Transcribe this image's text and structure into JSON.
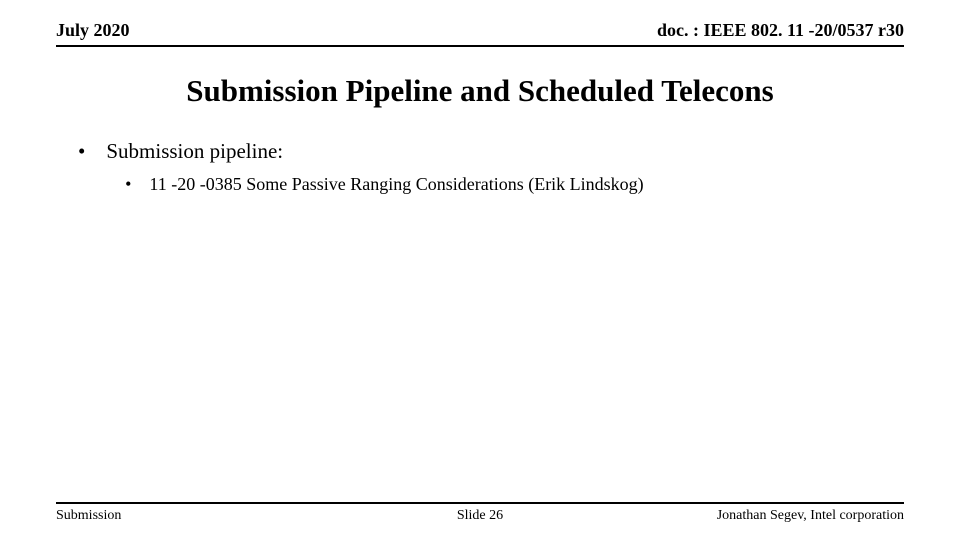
{
  "header": {
    "date": "July 2020",
    "doc": "doc. : IEEE 802. 11 -20/0537 r30"
  },
  "title": "Submission Pipeline and Scheduled Telecons",
  "body": {
    "bullet1": "Submission pipeline:",
    "sub1": "11 -20 -0385 Some Passive Ranging Considerations (Erik Lindskog)"
  },
  "footer": {
    "left": "Submission",
    "center": "Slide 26",
    "right": "Jonathan Segev, Intel corporation"
  }
}
